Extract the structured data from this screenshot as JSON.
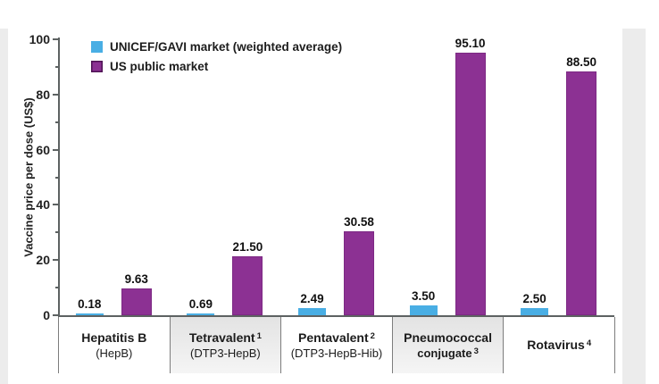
{
  "page": {
    "backdrop_color": "#ececec",
    "figure_background": "#ffffff"
  },
  "chart_data": {
    "type": "bar",
    "ylabel": "Vaccine price per dose (US$)",
    "ylim": [
      0,
      100
    ],
    "yticks_major": [
      0,
      20,
      40,
      60,
      80,
      100
    ],
    "yticks_minor": [
      10,
      30,
      50,
      70,
      90
    ],
    "grid": false,
    "legend_position": "top-left",
    "legend": [
      {
        "label": "UNICEF/GAVI market (weighted average)",
        "color": "#49aee4"
      },
      {
        "label": "US public market",
        "color": "#8c3193"
      }
    ],
    "categories": [
      {
        "line1": "Hepatitis B",
        "sup1": "",
        "line2": "(HepB)",
        "sup2": "",
        "line2_bold": false,
        "shaded": false
      },
      {
        "line1": "Tetravalent",
        "sup1": "1",
        "line2": "(DTP3-HepB)",
        "sup2": "",
        "line2_bold": false,
        "shaded": true
      },
      {
        "line1": "Pentavalent",
        "sup1": "2",
        "line2": "(DTP3-HepB-Hib)",
        "sup2": "",
        "line2_bold": false,
        "shaded": false
      },
      {
        "line1": "Pneumococcal",
        "sup1": "",
        "line2": "conjugate",
        "sup2": "3",
        "line2_bold": true,
        "shaded": true
      },
      {
        "line1": "Rotavirus",
        "sup1": "4",
        "line2": "",
        "sup2": "",
        "line2_bold": false,
        "shaded": false
      }
    ],
    "series": [
      {
        "name": "UNICEF/GAVI market (weighted average)",
        "color": "#49aee4",
        "values": [
          0.18,
          0.69,
          2.49,
          3.5,
          2.5
        ],
        "value_labels": [
          "0.18",
          "0.69",
          "2.49",
          "3.50",
          "2.50"
        ]
      },
      {
        "name": "US public market",
        "color": "#8c3193",
        "values": [
          9.63,
          21.5,
          30.58,
          95.1,
          88.5
        ],
        "value_labels": [
          "9.63",
          "21.50",
          "30.58",
          "95.10",
          "88.50"
        ]
      }
    ]
  },
  "colors": {
    "axis": "#5d6262",
    "band_border": "#7d7d7d",
    "text": "#1c1c1c"
  }
}
